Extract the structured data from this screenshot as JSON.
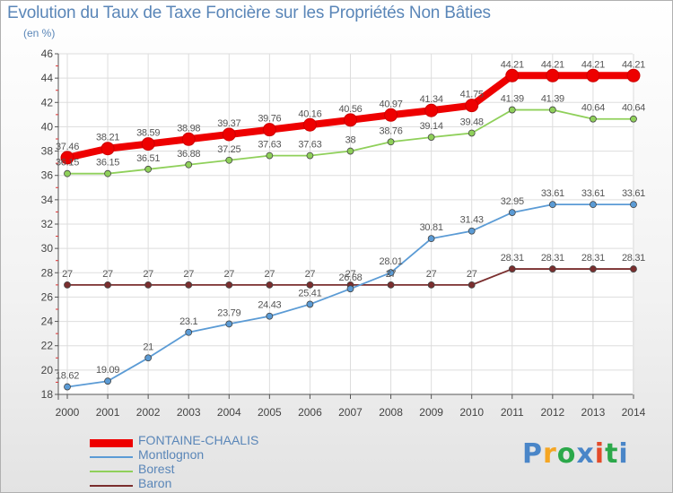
{
  "title": "Evolution du Taux de Taxe Foncière sur les Propriétés Non Bâties",
  "unit_label": "(en %)",
  "logo": {
    "letters": [
      "P",
      "r",
      "o",
      "x",
      "i",
      "t",
      "i"
    ],
    "colors": [
      "#4a86c8",
      "#f5a623",
      "#2ba84a",
      "#4a86c8",
      "#e34b2a",
      "#2ba84a",
      "#4a86c8"
    ]
  },
  "chart_data": {
    "type": "line",
    "x": [
      "2000",
      "2001",
      "2002",
      "2003",
      "2004",
      "2005",
      "2006",
      "2007",
      "2008",
      "2009",
      "2010",
      "2011",
      "2012",
      "2013",
      "2014"
    ],
    "ylim": [
      18,
      46
    ],
    "yticks": [
      18,
      20,
      22,
      24,
      26,
      28,
      30,
      32,
      34,
      36,
      38,
      40,
      42,
      44,
      46
    ],
    "grid": true,
    "legend_position": "bottom-left",
    "series": [
      {
        "name": "FONTAINE-CHAALIS",
        "color": "#ee0000",
        "values": [
          37.46,
          38.21,
          38.59,
          38.98,
          39.37,
          39.76,
          40.16,
          40.56,
          40.97,
          41.34,
          41.75,
          44.21,
          44.21,
          44.21,
          44.21
        ],
        "labels": [
          "37.46",
          "38.21",
          "38.59",
          "38.98",
          "39.37",
          "39.76",
          "40.16",
          "40.56",
          "40.97",
          "41.34",
          "41.75",
          "44.21",
          "44.21",
          "44.21",
          "44.21"
        ]
      },
      {
        "name": "Montlognon",
        "color": "#5b9bd5",
        "values": [
          18.62,
          19.09,
          21,
          23.1,
          23.79,
          24.43,
          25.41,
          26.68,
          28.01,
          30.81,
          31.43,
          32.95,
          33.61,
          33.61,
          33.61
        ],
        "labels": [
          "18.62",
          "19.09",
          "21",
          "23.1",
          "23.79",
          "24.43",
          "25.41",
          "26.68",
          "28.01",
          "30.81",
          "31.43",
          "32.95",
          "33.61",
          "33.61",
          "33.61"
        ]
      },
      {
        "name": "Borest",
        "color": "#8fd05a",
        "values": [
          36.15,
          36.15,
          36.51,
          36.88,
          37.25,
          37.63,
          37.63,
          38,
          38.76,
          39.14,
          39.48,
          41.39,
          41.39,
          40.64,
          40.64
        ],
        "labels": [
          "36.15",
          "36.15",
          "36.51",
          "36.88",
          "37.25",
          "37.63",
          "37.63",
          "38",
          "38.76",
          "39.14",
          "39.48",
          "41.39",
          "41.39",
          "40.64",
          "40.64"
        ]
      },
      {
        "name": "Baron",
        "color": "#7a2e2e",
        "values": [
          27,
          27,
          27,
          27,
          27,
          27,
          27,
          27,
          27,
          27,
          27,
          28.31,
          28.31,
          28.31,
          28.31
        ],
        "labels": [
          "27",
          "27",
          "27",
          "27",
          "27",
          "27",
          "27",
          "27",
          "27",
          "27",
          "27",
          "28.31",
          "28.31",
          "28.31",
          "28.31"
        ]
      }
    ]
  }
}
